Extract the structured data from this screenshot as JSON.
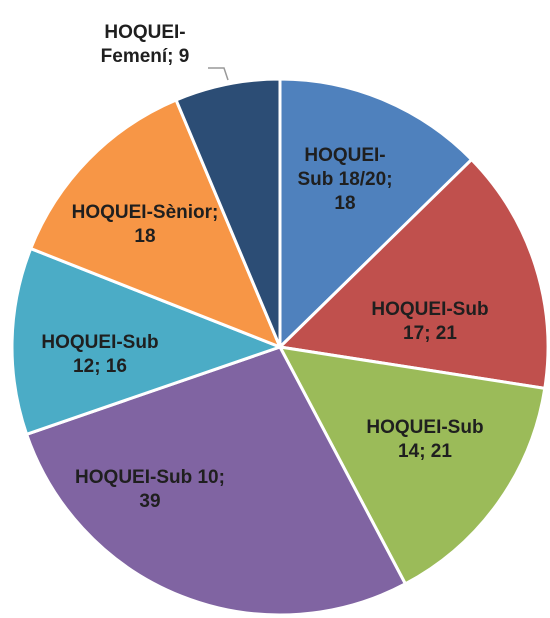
{
  "chart_data": {
    "type": "pie",
    "categories": [
      "HOQUEI-Sub 18/20",
      "HOQUEI-Sub 17",
      "HOQUEI-Sub 14",
      "HOQUEI-Sub 10",
      "HOQUEI-Sub 12",
      "HOQUEI-Sènior",
      "HOQUEI-Femení"
    ],
    "values": [
      18,
      21,
      21,
      39,
      16,
      18,
      9
    ],
    "colors": [
      "#4f81bd",
      "#c0504d",
      "#9bbb59",
      "#8064a2",
      "#4bacc6",
      "#f79646",
      "#2c4d75"
    ],
    "label_separator": "; "
  }
}
